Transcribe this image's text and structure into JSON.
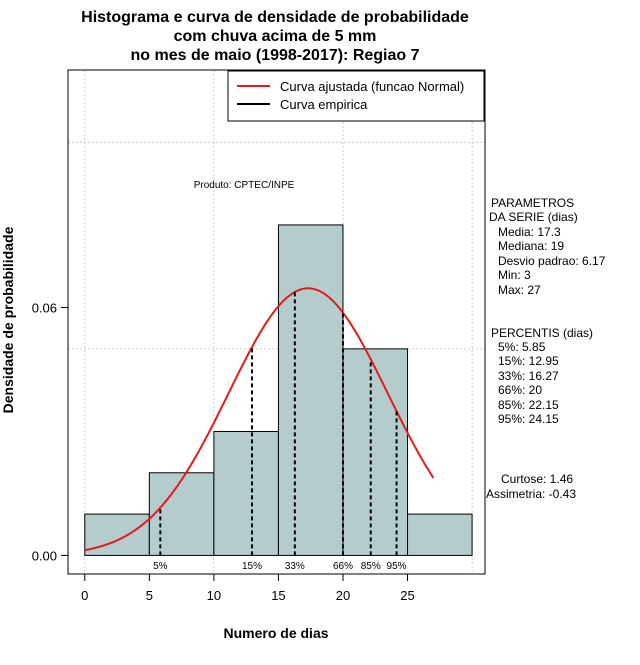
{
  "chart_data": {
    "type": "histogram",
    "title_lines": [
      "Histograma e curva de densidade de probabilidade",
      "com chuva acima de 5 mm",
      "no mes de maio (1998-2017): Regiao 7"
    ],
    "xlabel": "Numero de dias",
    "ylabel": "Densidade de probabilidade",
    "xlim": [
      -1.3,
      31
    ],
    "ylim": [
      -0.0045,
      0.1175
    ],
    "x_ticks": [
      0,
      5,
      10,
      15,
      20,
      25
    ],
    "y_ticks": [
      0.0,
      0.06
    ],
    "y_tick_labels": [
      "0.00",
      "0.06"
    ],
    "grid_x": [
      0,
      10,
      20,
      30
    ],
    "grid_y": [
      0.05,
      0.1
    ],
    "bins": [
      {
        "from": 0,
        "to": 5,
        "density": 0.01
      },
      {
        "from": 5,
        "to": 10,
        "density": 0.02
      },
      {
        "from": 10,
        "to": 15,
        "density": 0.03
      },
      {
        "from": 15,
        "to": 20,
        "density": 0.08
      },
      {
        "from": 20,
        "to": 25,
        "density": 0.05
      },
      {
        "from": 25,
        "to": 30,
        "density": 0.01
      }
    ],
    "normal_fit": {
      "mean": 17.3,
      "sd": 6.17,
      "x_from": 0,
      "x_to": 27
    },
    "percentile_lines": [
      {
        "label": "5%",
        "x": 5.85
      },
      {
        "label": "15%",
        "x": 12.95
      },
      {
        "label": "33%",
        "x": 16.27
      },
      {
        "label": "66%",
        "x": 20
      },
      {
        "label": "85%",
        "x": 22.15
      },
      {
        "label": "95%",
        "x": 24.15
      }
    ],
    "legend": {
      "position": "top-right",
      "entries": [
        {
          "label": "Curva ajustada (funcao Normal)",
          "color": "#e41a1c"
        },
        {
          "label": "Curva empirica",
          "color": "#000000"
        }
      ]
    },
    "annotation": "Produto: CPTEC/INPE",
    "colors": {
      "bar_fill": "#b4cccb",
      "curve": "#e41a1c",
      "grid": "#bfbfbf"
    }
  },
  "side_panel": {
    "parametros_title": [
      "PARAMETROS",
      "DA SERIE (dias)"
    ],
    "parametros": [
      "Media: 17.3",
      "Mediana: 19",
      "Desvio padrao: 6.17",
      "Min: 3",
      "Max: 27"
    ],
    "percentis_title": "PERCENTIS (dias)",
    "percentis": [
      "5%: 5.85",
      "15%: 12.95",
      "33%: 16.27",
      "66%: 20",
      "85%: 22.15",
      "95%: 24.15"
    ],
    "curtose": "Curtose: 1.46",
    "assimetria": "Assimetria: -0.43"
  }
}
